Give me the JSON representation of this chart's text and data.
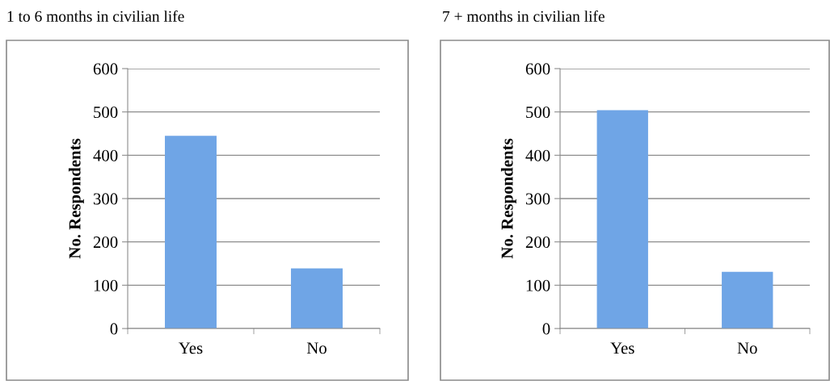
{
  "chart_data": [
    {
      "type": "bar",
      "title": "1 to 6 months in civilian life",
      "ylabel": "No. Respondents",
      "categories": [
        "Yes",
        "No"
      ],
      "values": [
        445,
        139
      ],
      "color": "#6fa5e6",
      "ylim": [
        0,
        600
      ],
      "yticks": [
        0,
        100,
        200,
        300,
        400,
        500,
        600
      ],
      "grid": "y"
    },
    {
      "type": "bar",
      "title": "7 + months in civilian life",
      "ylabel": "No. Respondents",
      "categories": [
        "Yes",
        "No"
      ],
      "values": [
        504,
        131
      ],
      "color": "#6fa5e6",
      "ylim": [
        0,
        600
      ],
      "yticks": [
        0,
        100,
        200,
        300,
        400,
        500,
        600
      ],
      "grid": "y"
    }
  ]
}
